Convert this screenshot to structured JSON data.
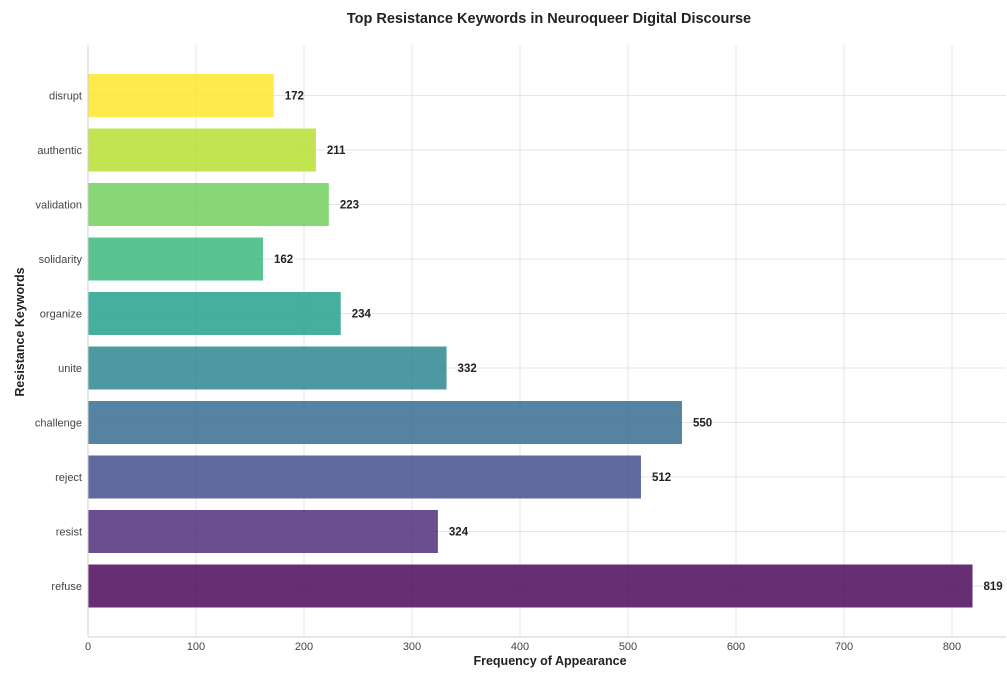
{
  "chart_data": {
    "type": "bar",
    "orientation": "horizontal",
    "title": "Top Resistance Keywords in Neuroqueer Digital Discourse",
    "xlabel": "Frequency of Appearance",
    "ylabel": "Resistance Keywords",
    "categories": [
      "refuse",
      "resist",
      "reject",
      "challenge",
      "unite",
      "organize",
      "solidarity",
      "validation",
      "authentic",
      "disrupt"
    ],
    "values": [
      819,
      324,
      512,
      550,
      332,
      234,
      162,
      223,
      211,
      172
    ],
    "colors": [
      "#440154",
      "#482878",
      "#3e4989",
      "#31688e",
      "#26828e",
      "#1f9e89",
      "#35b779",
      "#6ece58",
      "#b5de2b",
      "#fde725"
    ],
    "xlim": [
      0,
      850
    ],
    "xticks": [
      0,
      100,
      200,
      300,
      400,
      500,
      600,
      700,
      800
    ],
    "grid": true,
    "show_value_labels": true
  }
}
